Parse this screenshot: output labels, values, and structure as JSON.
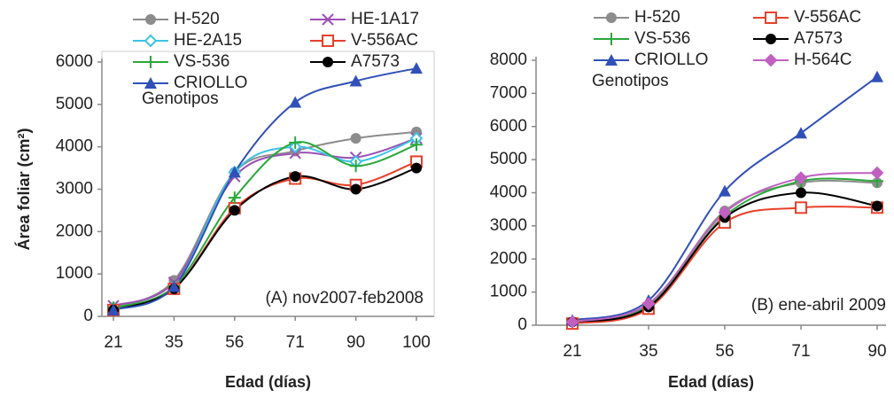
{
  "chart_data": [
    {
      "type": "line",
      "title": "(A) nov2007-feb2008",
      "ylabel": "Área foliar (cm²)",
      "xlabel": "Edad (días)",
      "legend_title": "Genotipos",
      "frame": true,
      "categories": [
        "21",
        "35",
        "56",
        "71",
        "90",
        "100"
      ],
      "ylim": [
        0,
        6000
      ],
      "yticks": [
        0,
        1000,
        2000,
        3000,
        4000,
        5000,
        6000
      ],
      "series": [
        {
          "name": "H-520",
          "color": "#8c8c8c",
          "marker": "circle",
          "values": [
            200,
            850,
            3400,
            3900,
            4200,
            4350
          ]
        },
        {
          "name": "HE-1A17",
          "color": "#9b4fb5",
          "marker": "x",
          "values": [
            250,
            800,
            3300,
            3850,
            3750,
            4200
          ]
        },
        {
          "name": "HE-2A15",
          "color": "#3cc3e6",
          "marker": "diamond-open",
          "values": [
            200,
            700,
            3400,
            4000,
            3650,
            4200
          ]
        },
        {
          "name": "V-556AC",
          "color": "#e8402a",
          "marker": "square-open",
          "values": [
            150,
            650,
            2550,
            3250,
            3100,
            3650
          ]
        },
        {
          "name": "VS-536",
          "color": "#2aa83a",
          "marker": "plus",
          "values": [
            200,
            700,
            2800,
            4100,
            3550,
            4050
          ]
        },
        {
          "name": "A7573",
          "color": "#000000",
          "marker": "circle",
          "values": [
            150,
            650,
            2500,
            3300,
            3000,
            3500
          ]
        },
        {
          "name": "CRIOLLO",
          "color": "#3050b8",
          "marker": "triangle",
          "values": [
            150,
            700,
            3400,
            5050,
            5550,
            5850
          ]
        }
      ]
    },
    {
      "type": "line",
      "title": "(B) ene-abril 2009",
      "xlabel": "Edad (días)",
      "legend_title": "Genotipos",
      "frame": false,
      "categories": [
        "21",
        "35",
        "56",
        "71",
        "90"
      ],
      "ylim": [
        0,
        8000
      ],
      "yticks": [
        0,
        1000,
        2000,
        3000,
        4000,
        5000,
        6000,
        7000,
        8000
      ],
      "series": [
        {
          "name": "H-520",
          "color": "#8c8c8c",
          "marker": "circle",
          "values": [
            100,
            600,
            3450,
            4300,
            4300
          ]
        },
        {
          "name": "V-556AC",
          "color": "#e8402a",
          "marker": "square-open",
          "values": [
            50,
            500,
            3100,
            3550,
            3550
          ]
        },
        {
          "name": "VS-536",
          "color": "#2aa83a",
          "marker": "plus",
          "values": [
            100,
            600,
            3300,
            4350,
            4350
          ]
        },
        {
          "name": "A7573",
          "color": "#000000",
          "marker": "circle",
          "values": [
            100,
            550,
            3250,
            4000,
            3600
          ]
        },
        {
          "name": "CRIOLLO",
          "color": "#3050b8",
          "marker": "triangle",
          "values": [
            150,
            750,
            4050,
            5800,
            7500
          ]
        },
        {
          "name": "H-564C",
          "color": "#c060c0",
          "marker": "diamond",
          "values": [
            100,
            650,
            3400,
            4450,
            4600
          ]
        }
      ]
    }
  ]
}
